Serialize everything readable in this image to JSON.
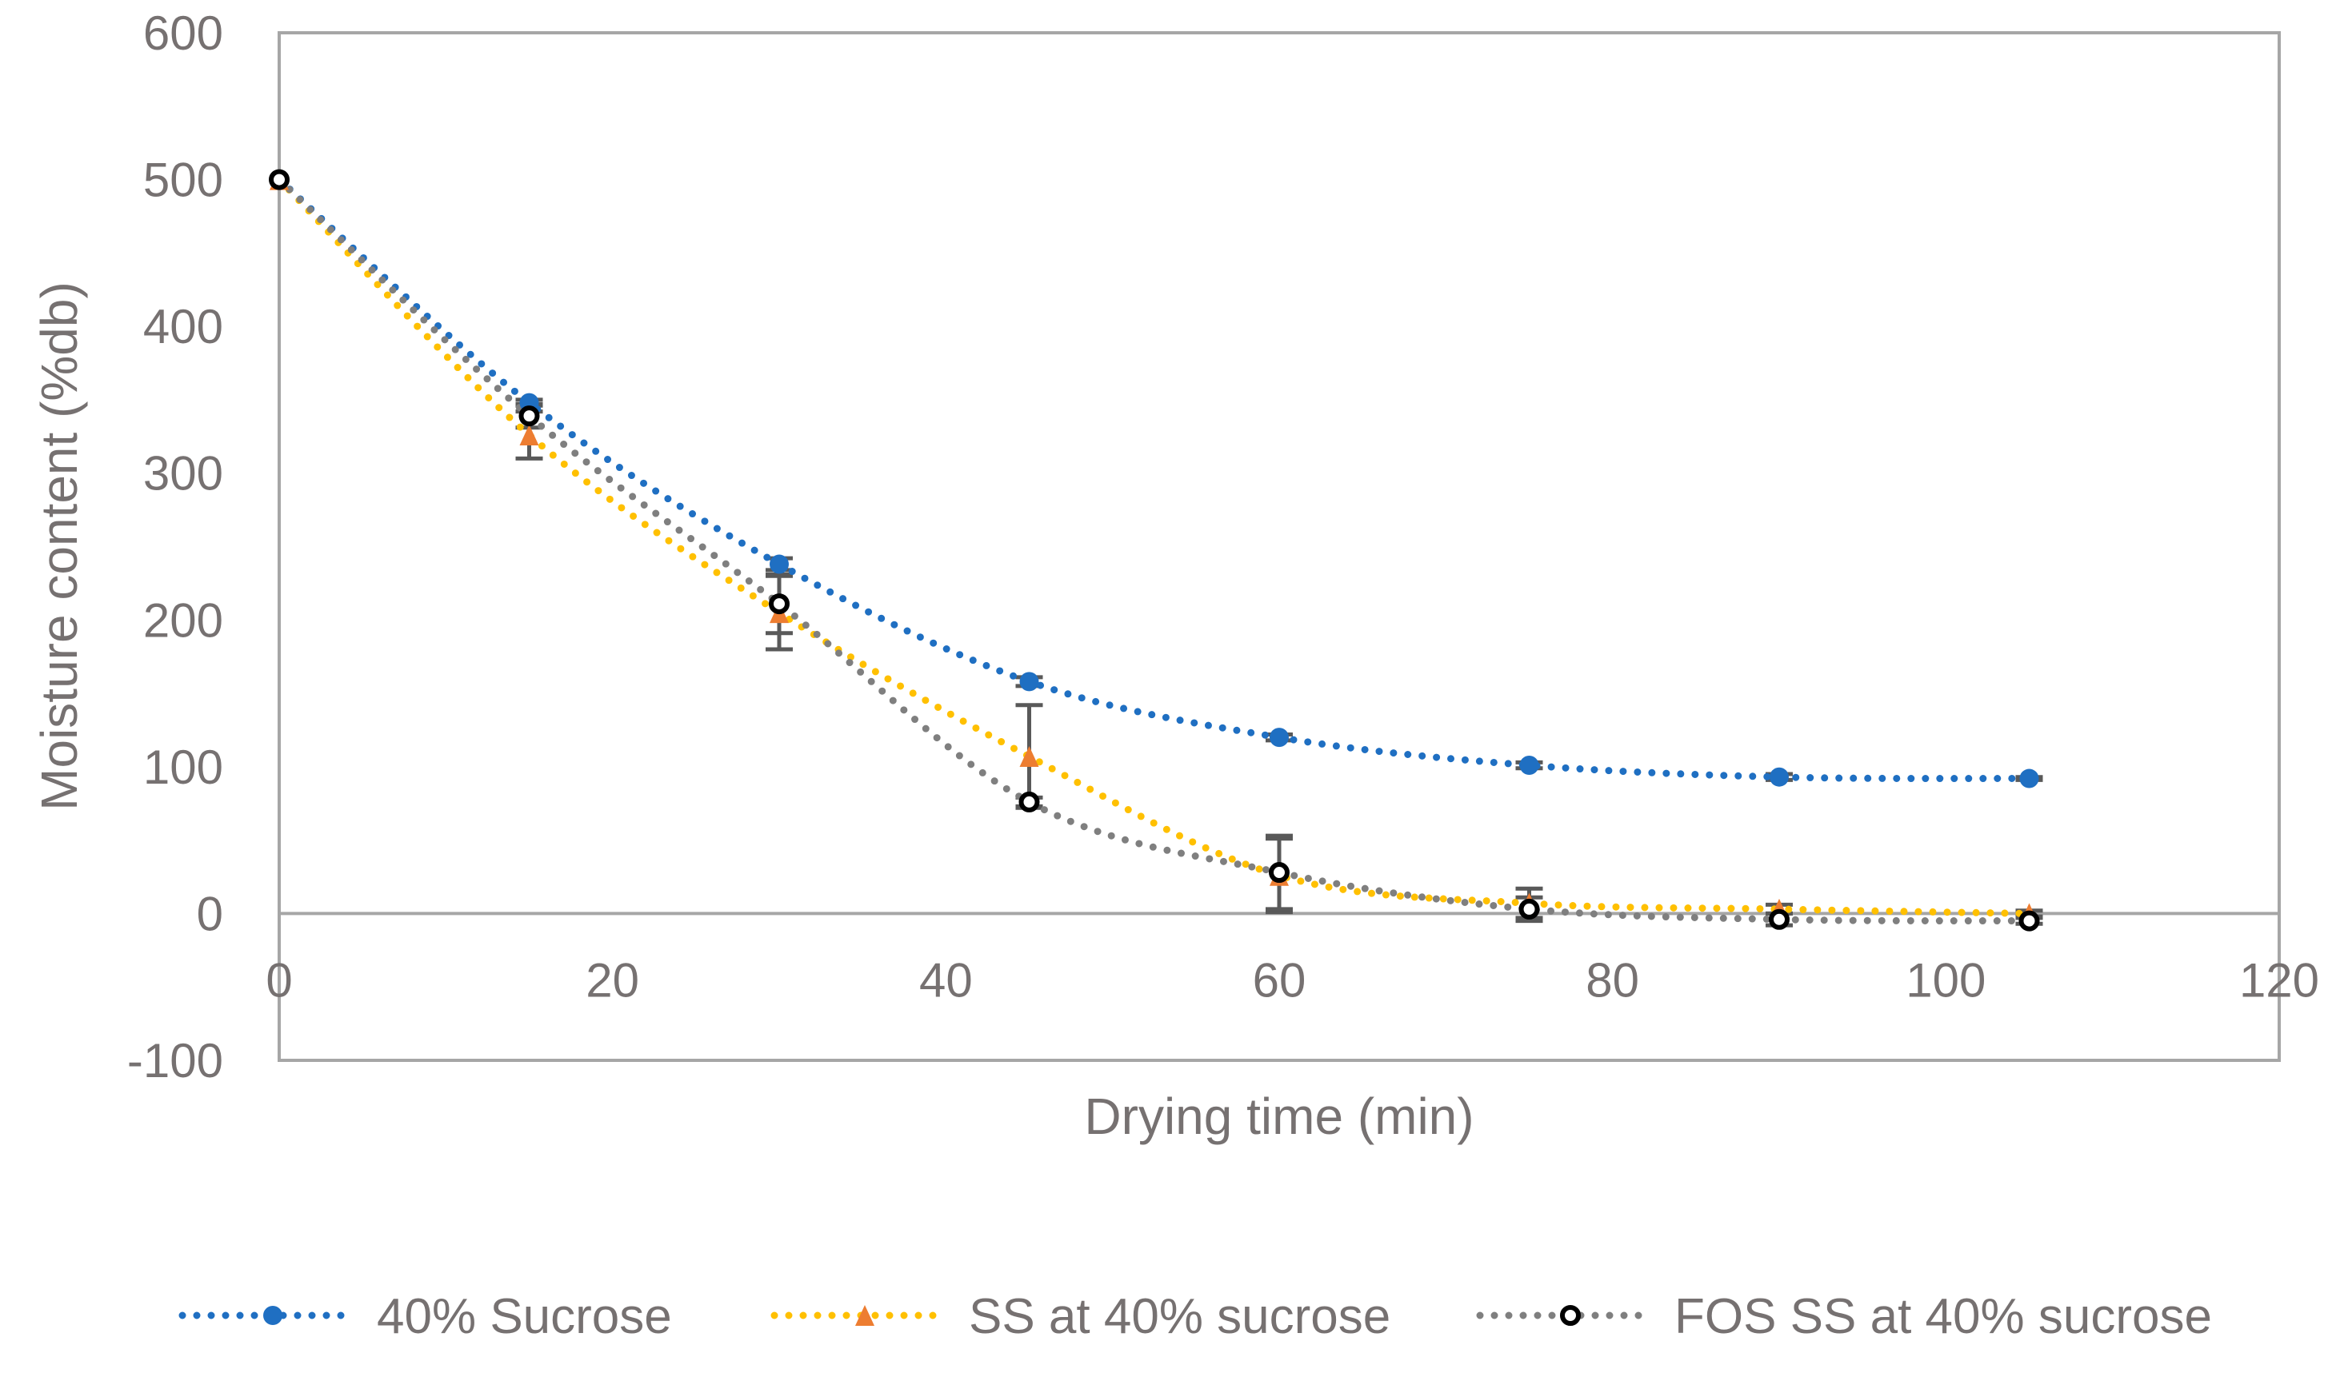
{
  "chart_data": {
    "type": "line",
    "title": "",
    "xlabel": "Drying time (min)",
    "ylabel": "Moisture content (%db)",
    "xlim": [
      0,
      120
    ],
    "ylim": [
      -100,
      600
    ],
    "x_ticks": [
      0,
      20,
      40,
      60,
      80,
      100,
      120
    ],
    "y_ticks": [
      -100,
      0,
      100,
      200,
      300,
      400,
      500,
      600
    ],
    "x_tick_labels": [
      "0",
      "20",
      "40",
      "60",
      "80",
      "100",
      "120"
    ],
    "y_tick_labels": [
      "-100",
      "0",
      "100",
      "200",
      "300",
      "400",
      "500",
      "600"
    ],
    "grid": false,
    "legend_position": "bottom",
    "x": [
      0,
      15,
      30,
      45,
      60,
      75,
      90,
      105
    ],
    "series": [
      {
        "name": "40% Sucrose",
        "color": "#1f6fc2",
        "marker": "circle",
        "values": [
          500,
          348,
          238,
          158,
          120,
          101,
          93,
          92
        ],
        "errors": [
          0,
          2,
          4,
          3,
          2,
          2,
          2,
          1
        ]
      },
      {
        "name": "SS at 40% sucrose",
        "color": "#ffc000",
        "marker_color": "#ed7d31",
        "marker": "triangle",
        "values": [
          500,
          326,
          205,
          107,
          26,
          7,
          3,
          0
        ],
        "errors": [
          0,
          16,
          25,
          35,
          25,
          10,
          3,
          2
        ]
      },
      {
        "name": "FOS SS at 40% sucrose",
        "color": "#7f7f7f",
        "marker_color": "#000000",
        "marker": "ring",
        "values": [
          500,
          339,
          211,
          76,
          28,
          3,
          -4,
          -5
        ],
        "errors": [
          0,
          8,
          20,
          3,
          25,
          8,
          4,
          2
        ]
      }
    ]
  }
}
